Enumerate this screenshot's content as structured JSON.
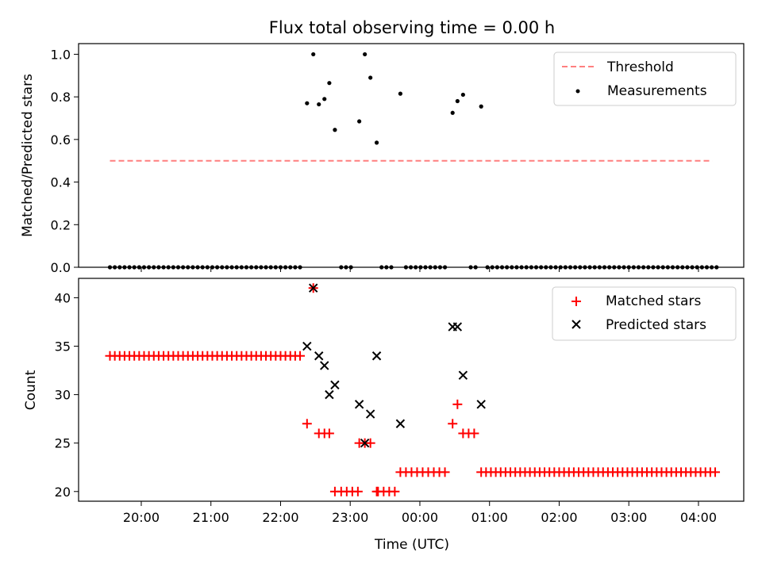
{
  "chart_data": [
    {
      "type": "scatter",
      "title": "Flux total observing time = 0.00 h",
      "xlabel": "",
      "ylabel": "Matched/Predicted stars",
      "ylim": [
        0,
        1.05
      ],
      "yticks": [
        "0.0",
        "0.2",
        "0.4",
        "0.6",
        "0.8",
        "1.0"
      ],
      "yticks_values": [
        0,
        0.2,
        0.4,
        0.6,
        0.8,
        1.0
      ],
      "x_unit": "hours after 00:00 UTC (negative = previous evening)",
      "threshold": {
        "name": "Threshold",
        "value": 0.5,
        "x_start": -4.45,
        "x_end": 4.2,
        "color": "#ff7f7f",
        "style": "dashed"
      },
      "series": [
        {
          "name": "Measurements",
          "color": "#000000",
          "marker": "dot",
          "points": [
            [
              -4.45,
              0
            ],
            [
              -4.38,
              0
            ],
            [
              -4.31,
              0
            ],
            [
              -4.24,
              0
            ],
            [
              -4.17,
              0
            ],
            [
              -4.1,
              0
            ],
            [
              -4.03,
              0
            ],
            [
              -3.96,
              0
            ],
            [
              -3.89,
              0
            ],
            [
              -3.82,
              0
            ],
            [
              -3.75,
              0
            ],
            [
              -3.68,
              0
            ],
            [
              -3.61,
              0
            ],
            [
              -3.54,
              0
            ],
            [
              -3.47,
              0
            ],
            [
              -3.4,
              0
            ],
            [
              -3.33,
              0
            ],
            [
              -3.26,
              0
            ],
            [
              -3.19,
              0
            ],
            [
              -3.12,
              0
            ],
            [
              -3.05,
              0
            ],
            [
              -2.98,
              0
            ],
            [
              -2.91,
              0
            ],
            [
              -2.84,
              0
            ],
            [
              -2.77,
              0
            ],
            [
              -2.7,
              0
            ],
            [
              -2.63,
              0
            ],
            [
              -2.56,
              0
            ],
            [
              -2.49,
              0
            ],
            [
              -2.42,
              0
            ],
            [
              -2.35,
              0
            ],
            [
              -2.28,
              0
            ],
            [
              -2.21,
              0
            ],
            [
              -2.14,
              0
            ],
            [
              -2.07,
              0
            ],
            [
              -2.0,
              0
            ],
            [
              -1.93,
              0
            ],
            [
              -1.86,
              0
            ],
            [
              -1.79,
              0
            ],
            [
              -1.72,
              0
            ],
            [
              -1.62,
              0.77
            ],
            [
              -1.53,
              1.0
            ],
            [
              -1.45,
              0.765
            ],
            [
              -1.37,
              0.79
            ],
            [
              -1.3,
              0.865
            ],
            [
              -1.22,
              0.645
            ],
            [
              -1.13,
              0
            ],
            [
              -1.06,
              0
            ],
            [
              -0.99,
              0
            ],
            [
              -0.87,
              0.685
            ],
            [
              -0.79,
              1.0
            ],
            [
              -0.71,
              0.89
            ],
            [
              -0.62,
              0.585
            ],
            [
              -0.55,
              0
            ],
            [
              -0.48,
              0
            ],
            [
              -0.41,
              0
            ],
            [
              -0.28,
              0.815
            ],
            [
              -0.2,
              0
            ],
            [
              -0.13,
              0
            ],
            [
              -0.06,
              0
            ],
            [
              0.01,
              0
            ],
            [
              0.08,
              0
            ],
            [
              0.15,
              0
            ],
            [
              0.22,
              0
            ],
            [
              0.29,
              0
            ],
            [
              0.36,
              0
            ],
            [
              0.47,
              0.725
            ],
            [
              0.54,
              0.78
            ],
            [
              0.62,
              0.81
            ],
            [
              0.73,
              0
            ],
            [
              0.8,
              0
            ],
            [
              0.88,
              0.755
            ],
            [
              0.97,
              0
            ],
            [
              1.04,
              0
            ],
            [
              1.11,
              0
            ],
            [
              1.18,
              0
            ],
            [
              1.25,
              0
            ],
            [
              1.32,
              0
            ],
            [
              1.39,
              0
            ],
            [
              1.46,
              0
            ],
            [
              1.53,
              0
            ],
            [
              1.6,
              0
            ],
            [
              1.67,
              0
            ],
            [
              1.74,
              0
            ],
            [
              1.81,
              0
            ],
            [
              1.88,
              0
            ],
            [
              1.95,
              0
            ],
            [
              2.02,
              0
            ],
            [
              2.09,
              0
            ],
            [
              2.16,
              0
            ],
            [
              2.23,
              0
            ],
            [
              2.3,
              0
            ],
            [
              2.37,
              0
            ],
            [
              2.44,
              0
            ],
            [
              2.51,
              0
            ],
            [
              2.58,
              0
            ],
            [
              2.65,
              0
            ],
            [
              2.72,
              0
            ],
            [
              2.79,
              0
            ],
            [
              2.86,
              0
            ],
            [
              2.93,
              0
            ],
            [
              3.0,
              0
            ],
            [
              3.07,
              0
            ],
            [
              3.14,
              0
            ],
            [
              3.21,
              0
            ],
            [
              3.28,
              0
            ],
            [
              3.35,
              0
            ],
            [
              3.42,
              0
            ],
            [
              3.49,
              0
            ],
            [
              3.56,
              0
            ],
            [
              3.63,
              0
            ],
            [
              3.7,
              0
            ],
            [
              3.77,
              0
            ],
            [
              3.84,
              0
            ],
            [
              3.91,
              0
            ],
            [
              3.98,
              0
            ],
            [
              4.05,
              0
            ],
            [
              4.12,
              0
            ],
            [
              4.19,
              0
            ],
            [
              4.26,
              0
            ]
          ]
        }
      ],
      "legend": {
        "position": "top-right",
        "entries": [
          "Threshold",
          "Measurements"
        ]
      }
    },
    {
      "type": "scatter",
      "title": "",
      "xlabel": "Time (UTC)",
      "ylabel": "Count",
      "ylim": [
        19,
        42
      ],
      "yticks": [
        "20",
        "25",
        "30",
        "35",
        "40"
      ],
      "yticks_values": [
        20,
        25,
        30,
        35,
        40
      ],
      "xlim": [
        -4.9,
        4.65
      ],
      "xticks": [
        "20:00",
        "21:00",
        "22:00",
        "23:00",
        "00:00",
        "01:00",
        "02:00",
        "03:00",
        "04:00"
      ],
      "xticks_values": [
        -4,
        -3,
        -2,
        -1,
        0,
        1,
        2,
        3,
        4
      ],
      "series": [
        {
          "name": "Matched stars",
          "color": "#ff0000",
          "marker": "plus",
          "flat_segments": [
            {
              "x_start": -4.45,
              "x_end": -1.72,
              "step": 0.07,
              "y": 34
            },
            {
              "x_start": -1.13,
              "x_end": -0.89,
              "step": 0.08,
              "y": 20
            },
            {
              "x_start": -0.6,
              "x_end": -0.36,
              "step": 0.08,
              "y": 20
            },
            {
              "x_start": -0.28,
              "x_end": 0.36,
              "step": 0.08,
              "y": 22
            },
            {
              "x_start": 0.88,
              "x_end": 4.26,
              "step": 0.07,
              "y": 22
            }
          ],
          "points": [
            [
              -1.62,
              27
            ],
            [
              -1.53,
              41
            ],
            [
              -1.45,
              26
            ],
            [
              -1.37,
              26
            ],
            [
              -1.3,
              26
            ],
            [
              -1.22,
              20
            ],
            [
              -0.87,
              25
            ],
            [
              -0.79,
              25
            ],
            [
              -0.71,
              25
            ],
            [
              -0.62,
              20
            ],
            [
              0.47,
              27
            ],
            [
              0.54,
              29
            ],
            [
              0.62,
              26
            ],
            [
              0.7,
              26
            ],
            [
              0.78,
              26
            ]
          ]
        },
        {
          "name": "Predicted stars",
          "color": "#000000",
          "marker": "x",
          "points": [
            [
              -1.62,
              35
            ],
            [
              -1.53,
              41
            ],
            [
              -1.45,
              34
            ],
            [
              -1.37,
              33
            ],
            [
              -1.3,
              30
            ],
            [
              -1.22,
              31
            ],
            [
              -0.87,
              29
            ],
            [
              -0.79,
              25
            ],
            [
              -0.71,
              28
            ],
            [
              -0.62,
              34
            ],
            [
              -0.28,
              27
            ],
            [
              0.47,
              37
            ],
            [
              0.54,
              37
            ],
            [
              0.62,
              32
            ],
            [
              0.88,
              29
            ]
          ]
        }
      ],
      "legend": {
        "position": "top-right",
        "entries": [
          "Matched stars",
          "Predicted stars"
        ]
      }
    }
  ]
}
